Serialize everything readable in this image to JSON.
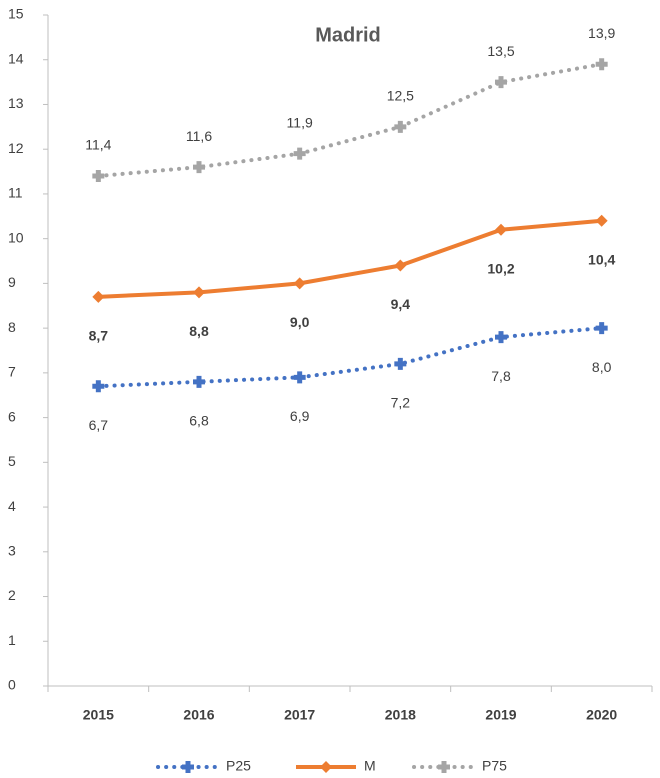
{
  "chart_data": {
    "type": "line",
    "title": "Madrid",
    "categories": [
      "2015",
      "2016",
      "2017",
      "2018",
      "2019",
      "2020"
    ],
    "series": [
      {
        "name": "P25",
        "color": "#4472c4",
        "line_style": "dotted",
        "marker": "plus",
        "label_position": "below",
        "label_bold": false,
        "values": [
          6.7,
          6.8,
          6.9,
          7.2,
          7.8,
          8.0
        ],
        "value_labels": [
          "6,7",
          "6,8",
          "6,9",
          "7,2",
          "7,8",
          "8,0"
        ]
      },
      {
        "name": "M",
        "color": "#ed7d31",
        "line_style": "solid",
        "marker": "diamond",
        "label_position": "below",
        "label_bold": true,
        "values": [
          8.7,
          8.8,
          9.0,
          9.4,
          10.2,
          10.4
        ],
        "value_labels": [
          "8,7",
          "8,8",
          "9,0",
          "9,4",
          "10,2",
          "10,4"
        ]
      },
      {
        "name": "P75",
        "color": "#a5a5a5",
        "line_style": "dotted",
        "marker": "plus",
        "label_position": "above",
        "label_bold": false,
        "values": [
          11.4,
          11.6,
          11.9,
          12.5,
          13.5,
          13.9
        ],
        "value_labels": [
          "11,4",
          "11,6",
          "11,9",
          "12,5",
          "13,5",
          "13,9"
        ]
      }
    ],
    "ylim": [
      0,
      15
    ],
    "yticks": [
      0,
      1,
      2,
      3,
      4,
      5,
      6,
      7,
      8,
      9,
      10,
      11,
      12,
      13,
      14,
      15
    ],
    "grid": false,
    "legend": "bottom"
  }
}
